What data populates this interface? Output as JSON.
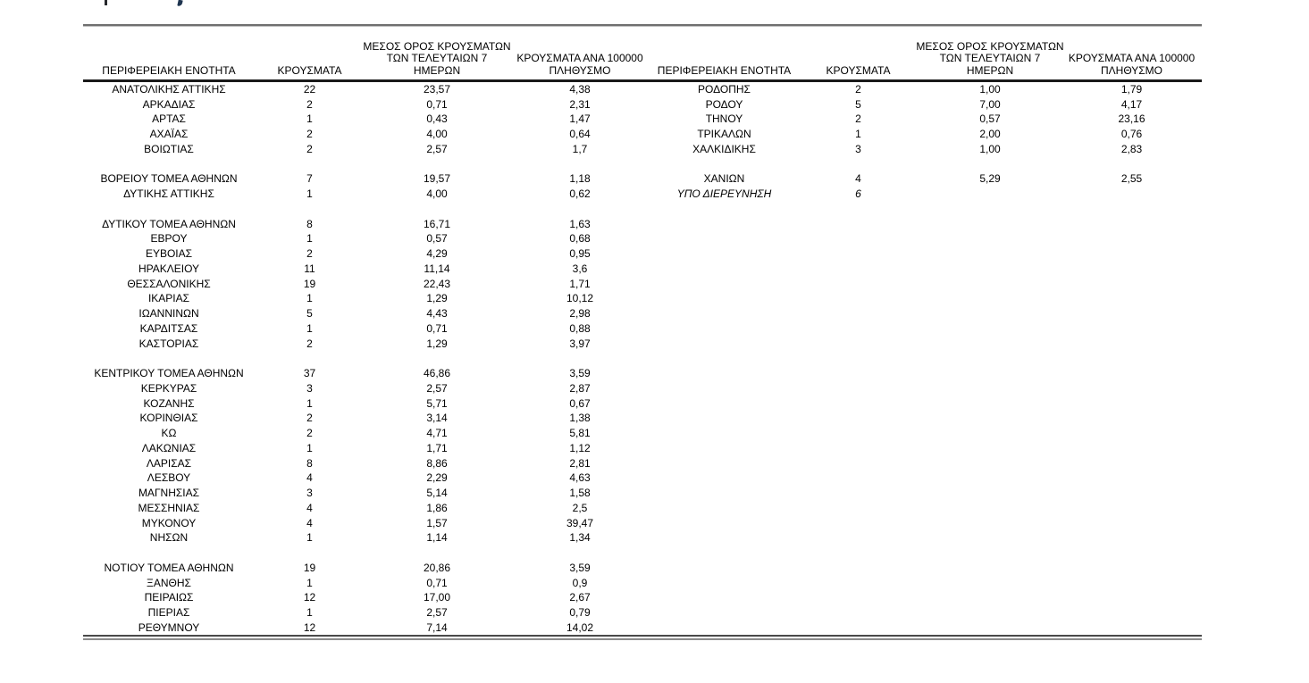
{
  "colors": {
    "text": "#000000",
    "header_rule": "#1a1a1a",
    "top_rule": "#6f6f6f",
    "bottom_rule": "#4a4a4a",
    "background": "#ffffff"
  },
  "table": {
    "headers": {
      "region": "ΠΕΡΙΦΕΡΕΙΑΚΗ ΕΝΟΤΗΤΑ",
      "cases": "ΚΡΟΥΣΜΑΤΑ",
      "avg7_line1": "ΜΕΣΟΣ ΟΡΟΣ ΚΡΟΥΣΜΑΤΩΝ",
      "avg7_line2": "ΤΩΝ ΤΕΛΕΥΤΑΙΩΝ 7",
      "avg7_line3": "ΗΜΕΡΩΝ",
      "per100k_line1": "ΚΡΟΥΣΜΑΤΑ ΑΝΑ 100000",
      "per100k_line2": "ΠΛΗΘΥΣΜΟ"
    },
    "left_rows": [
      [
        "ΑΝΑΤΟΛΙΚΗΣ ΑΤΤΙΚΗΣ",
        "22",
        "23,57",
        "4,38"
      ],
      [
        "ΑΡΚΑΔΙΑΣ",
        "2",
        "0,71",
        "2,31"
      ],
      [
        "ΑΡΤΑΣ",
        "1",
        "0,43",
        "1,47"
      ],
      [
        "ΑΧΑΪΑΣ",
        "2",
        "4,00",
        "0,64"
      ],
      [
        "ΒΟΙΩΤΙΑΣ",
        "2",
        "2,57",
        "1,7"
      ],
      [
        "",
        "",
        "",
        ""
      ],
      [
        "ΒΟΡΕΙΟΥ ΤΟΜΕΑ ΑΘΗΝΩΝ",
        "7",
        "19,57",
        "1,18"
      ],
      [
        "ΔΥΤΙΚΗΣ ΑΤΤΙΚΗΣ",
        "1",
        "4,00",
        "0,62"
      ],
      [
        "",
        "",
        "",
        ""
      ],
      [
        "ΔΥΤΙΚΟΥ ΤΟΜΕΑ ΑΘΗΝΩΝ",
        "8",
        "16,71",
        "1,63"
      ],
      [
        "ΕΒΡΟΥ",
        "1",
        "0,57",
        "0,68"
      ],
      [
        "ΕΥΒΟΙΑΣ",
        "2",
        "4,29",
        "0,95"
      ],
      [
        "ΗΡΑΚΛΕΙΟΥ",
        "11",
        "11,14",
        "3,6"
      ],
      [
        "ΘΕΣΣΑΛΟΝΙΚΗΣ",
        "19",
        "22,43",
        "1,71"
      ],
      [
        "ΙΚΑΡΙΑΣ",
        "1",
        "1,29",
        "10,12"
      ],
      [
        "ΙΩΑΝΝΙΝΩΝ",
        "5",
        "4,43",
        "2,98"
      ],
      [
        "ΚΑΡΔΙΤΣΑΣ",
        "1",
        "0,71",
        "0,88"
      ],
      [
        "ΚΑΣΤΟΡΙΑΣ",
        "2",
        "1,29",
        "3,97"
      ],
      [
        "",
        "",
        "",
        ""
      ],
      [
        "ΚΕΝΤΡΙΚΟΥ ΤΟΜΕΑ ΑΘΗΝΩΝ",
        "37",
        "46,86",
        "3,59"
      ],
      [
        "ΚΕΡΚΥΡΑΣ",
        "3",
        "2,57",
        "2,87"
      ],
      [
        "ΚΟΖΑΝΗΣ",
        "1",
        "5,71",
        "0,67"
      ],
      [
        "ΚΟΡΙΝΘΙΑΣ",
        "2",
        "3,14",
        "1,38"
      ],
      [
        "ΚΩ",
        "2",
        "4,71",
        "5,81"
      ],
      [
        "ΛΑΚΩΝΙΑΣ",
        "1",
        "1,71",
        "1,12"
      ],
      [
        "ΛΑΡΙΣΑΣ",
        "8",
        "8,86",
        "2,81"
      ],
      [
        "ΛΕΣΒΟΥ",
        "4",
        "2,29",
        "4,63"
      ],
      [
        "ΜΑΓΝΗΣΙΑΣ",
        "3",
        "5,14",
        "1,58"
      ],
      [
        "ΜΕΣΣΗΝΙΑΣ",
        "4",
        "1,86",
        "2,5"
      ],
      [
        "ΜΥΚΟΝΟΥ",
        "4",
        "1,57",
        "39,47"
      ],
      [
        "ΝΗΣΩΝ",
        "1",
        "1,14",
        "1,34"
      ],
      [
        "",
        "",
        "",
        ""
      ],
      [
        "ΝΟΤΙΟΥ ΤΟΜΕΑ ΑΘΗΝΩΝ",
        "19",
        "20,86",
        "3,59"
      ],
      [
        "ΞΑΝΘΗΣ",
        "1",
        "0,71",
        "0,9"
      ],
      [
        "ΠΕΙΡΑΙΩΣ",
        "12",
        "17,00",
        "2,67"
      ],
      [
        "ΠΙΕΡΙΑΣ",
        "1",
        "2,57",
        "0,79"
      ],
      [
        "ΡΕΘΥΜΝΟΥ",
        "12",
        "7,14",
        "14,02"
      ]
    ],
    "right_rows": [
      [
        "ΡΟΔΟΠΗΣ",
        "2",
        "1,00",
        "1,79"
      ],
      [
        "ΡΟΔΟΥ",
        "5",
        "7,00",
        "4,17"
      ],
      [
        "ΤΗΝΟΥ",
        "2",
        "0,57",
        "23,16"
      ],
      [
        "ΤΡΙΚΑΛΩΝ",
        "1",
        "2,00",
        "0,76"
      ],
      [
        "ΧΑΛΚΙΔΙΚΗΣ",
        "3",
        "1,00",
        "2,83"
      ],
      [
        "",
        "",
        "",
        ""
      ],
      [
        "ΧΑΝΙΩΝ",
        "4",
        "5,29",
        "2,55"
      ],
      [
        "ΥΠΟ ΔΙΕΡΕΥΝΗΣΗ",
        "6",
        "",
        ""
      ]
    ],
    "right_italic_row_index": 7
  }
}
